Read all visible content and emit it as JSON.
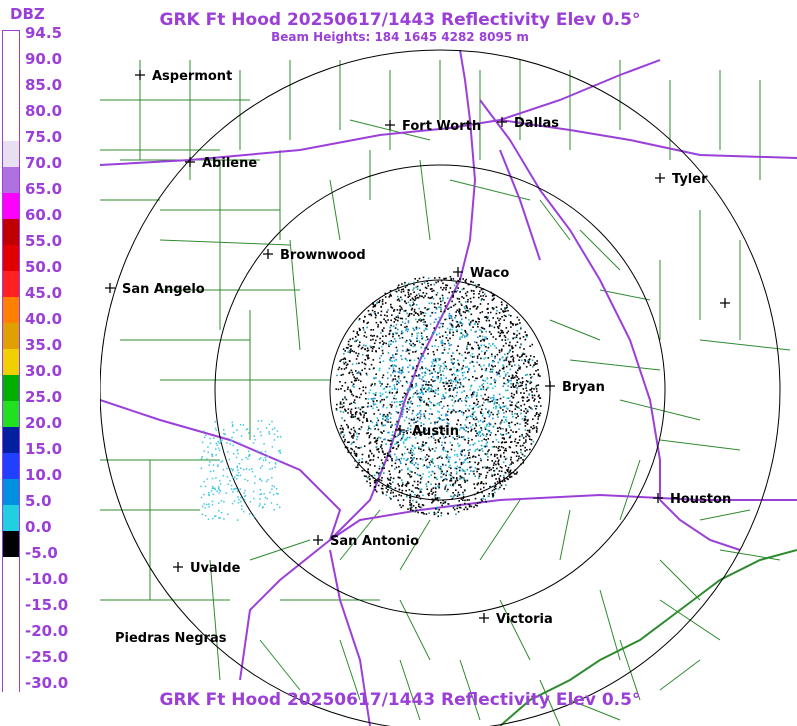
{
  "title": "GRK Ft Hood 20250617/1443 Reflectivity Elev 0.5°",
  "beam_heights": "Beam Heights: 184 1645 4282 8095 m",
  "legend": {
    "unit": "DBZ",
    "labels": [
      "94.5",
      "90.0",
      "85.0",
      "80.0",
      "75.0",
      "70.0",
      "65.0",
      "60.0",
      "55.0",
      "50.0",
      "45.0",
      "40.0",
      "35.0",
      "30.0",
      "25.0",
      "20.0",
      "15.0",
      "10.0",
      "5.0",
      "0.0",
      "-5.0",
      "-10.0",
      "-15.0",
      "-20.0",
      "-25.0",
      "-30.0"
    ],
    "colors": [
      "#ffffff",
      "#ffffff",
      "#ffffff",
      "#ffffff",
      "#e8e0f0",
      "#b070e0",
      "#ff00ff",
      "#c00000",
      "#e00000",
      "#ff2020",
      "#ff8000",
      "#e0a000",
      "#f0d000",
      "#00b000",
      "#20e020",
      "#0020a0",
      "#2040ff",
      "#0090e0",
      "#20d0e0",
      "#000000",
      "#ffffff",
      "#ffffff",
      "#ffffff",
      "#ffffff",
      "#ffffff",
      "#ffffff"
    ]
  },
  "cities": [
    {
      "name": "Aspermont"
    },
    {
      "name": "Fort Worth"
    },
    {
      "name": "Dallas"
    },
    {
      "name": "Abilene"
    },
    {
      "name": "Tyler"
    },
    {
      "name": "Brownwood"
    },
    {
      "name": "Waco"
    },
    {
      "name": "San Angelo"
    },
    {
      "name": "Bryan"
    },
    {
      "name": "Austin"
    },
    {
      "name": "Houston"
    },
    {
      "name": "San Antonio"
    },
    {
      "name": "Uvalde"
    },
    {
      "name": "Victoria"
    },
    {
      "name": "Piedras Negras"
    },
    {
      "name": ""
    }
  ],
  "colors": {
    "title": "#9b3fd9",
    "county_lines": "#2e8b2e",
    "highways": "#9b3fd9",
    "range_rings": "#000000"
  }
}
